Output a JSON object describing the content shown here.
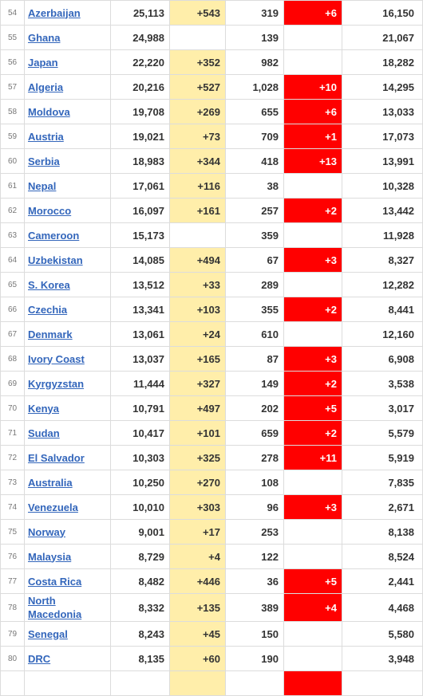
{
  "colors": {
    "new_cases_bg": "#ffeeaa",
    "new_deaths_bg": "#ff0000",
    "link": "#3366bb"
  },
  "rows": [
    {
      "rank": "54",
      "country": "Azerbaijan",
      "total": "25,113",
      "new_cases": "+543",
      "deaths": "319",
      "new_deaths": "+6",
      "recovered": "16,150"
    },
    {
      "rank": "55",
      "country": "Ghana",
      "total": "24,988",
      "new_cases": "",
      "deaths": "139",
      "new_deaths": "",
      "recovered": "21,067"
    },
    {
      "rank": "56",
      "country": "Japan",
      "total": "22,220",
      "new_cases": "+352",
      "deaths": "982",
      "new_deaths": "",
      "recovered": "18,282"
    },
    {
      "rank": "57",
      "country": "Algeria",
      "total": "20,216",
      "new_cases": "+527",
      "deaths": "1,028",
      "new_deaths": "+10",
      "recovered": "14,295"
    },
    {
      "rank": "58",
      "country": "Moldova",
      "total": "19,708",
      "new_cases": "+269",
      "deaths": "655",
      "new_deaths": "+6",
      "recovered": "13,033"
    },
    {
      "rank": "59",
      "country": "Austria",
      "total": "19,021",
      "new_cases": "+73",
      "deaths": "709",
      "new_deaths": "+1",
      "recovered": "17,073"
    },
    {
      "rank": "60",
      "country": "Serbia",
      "total": "18,983",
      "new_cases": "+344",
      "deaths": "418",
      "new_deaths": "+13",
      "recovered": "13,991"
    },
    {
      "rank": "61",
      "country": "Nepal",
      "total": "17,061",
      "new_cases": "+116",
      "deaths": "38",
      "new_deaths": "",
      "recovered": "10,328"
    },
    {
      "rank": "62",
      "country": "Morocco",
      "total": "16,097",
      "new_cases": "+161",
      "deaths": "257",
      "new_deaths": "+2",
      "recovered": "13,442"
    },
    {
      "rank": "63",
      "country": "Cameroon",
      "total": "15,173",
      "new_cases": "",
      "deaths": "359",
      "new_deaths": "",
      "recovered": "11,928"
    },
    {
      "rank": "64",
      "country": "Uzbekistan",
      "total": "14,085",
      "new_cases": "+494",
      "deaths": "67",
      "new_deaths": "+3",
      "recovered": "8,327"
    },
    {
      "rank": "65",
      "country": "S. Korea",
      "total": "13,512",
      "new_cases": "+33",
      "deaths": "289",
      "new_deaths": "",
      "recovered": "12,282"
    },
    {
      "rank": "66",
      "country": "Czechia",
      "total": "13,341",
      "new_cases": "+103",
      "deaths": "355",
      "new_deaths": "+2",
      "recovered": "8,441"
    },
    {
      "rank": "67",
      "country": "Denmark",
      "total": "13,061",
      "new_cases": "+24",
      "deaths": "610",
      "new_deaths": "",
      "recovered": "12,160"
    },
    {
      "rank": "68",
      "country": "Ivory Coast",
      "total": "13,037",
      "new_cases": "+165",
      "deaths": "87",
      "new_deaths": "+3",
      "recovered": "6,908"
    },
    {
      "rank": "69",
      "country": "Kyrgyzstan",
      "total": "11,444",
      "new_cases": "+327",
      "deaths": "149",
      "new_deaths": "+2",
      "recovered": "3,538"
    },
    {
      "rank": "70",
      "country": "Kenya",
      "total": "10,791",
      "new_cases": "+497",
      "deaths": "202",
      "new_deaths": "+5",
      "recovered": "3,017"
    },
    {
      "rank": "71",
      "country": "Sudan",
      "total": "10,417",
      "new_cases": "+101",
      "deaths": "659",
      "new_deaths": "+2",
      "recovered": "5,579"
    },
    {
      "rank": "72",
      "country": "El Salvador",
      "total": "10,303",
      "new_cases": "+325",
      "deaths": "278",
      "new_deaths": "+11",
      "recovered": "5,919"
    },
    {
      "rank": "73",
      "country": "Australia",
      "total": "10,250",
      "new_cases": "+270",
      "deaths": "108",
      "new_deaths": "",
      "recovered": "7,835"
    },
    {
      "rank": "74",
      "country": "Venezuela",
      "total": "10,010",
      "new_cases": "+303",
      "deaths": "96",
      "new_deaths": "+3",
      "recovered": "2,671"
    },
    {
      "rank": "75",
      "country": "Norway",
      "total": "9,001",
      "new_cases": "+17",
      "deaths": "253",
      "new_deaths": "",
      "recovered": "8,138"
    },
    {
      "rank": "76",
      "country": "Malaysia",
      "total": "8,729",
      "new_cases": "+4",
      "deaths": "122",
      "new_deaths": "",
      "recovered": "8,524"
    },
    {
      "rank": "77",
      "country": "Costa Rica",
      "total": "8,482",
      "new_cases": "+446",
      "deaths": "36",
      "new_deaths": "+5",
      "recovered": "2,441"
    },
    {
      "rank": "78",
      "country": "North Macedonia",
      "total": "8,332",
      "new_cases": "+135",
      "deaths": "389",
      "new_deaths": "+4",
      "recovered": "4,468"
    },
    {
      "rank": "79",
      "country": "Senegal",
      "total": "8,243",
      "new_cases": "+45",
      "deaths": "150",
      "new_deaths": "",
      "recovered": "5,580"
    },
    {
      "rank": "80",
      "country": "DRC",
      "total": "8,135",
      "new_cases": "+60",
      "deaths": "190",
      "new_deaths": "",
      "recovered": "3,948"
    },
    {
      "rank": "",
      "country": "",
      "total": "",
      "new_cases": "",
      "deaths": "",
      "new_deaths": "",
      "recovered": ""
    }
  ]
}
